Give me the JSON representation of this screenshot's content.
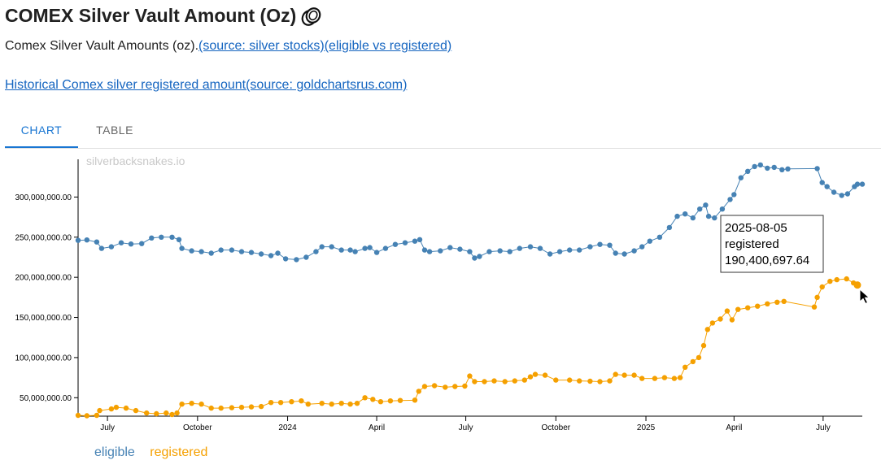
{
  "header": {
    "title": "COMEX Silver Vault Amount (Oz)",
    "description_prefix": "Comex Silver Vault Amounts (oz).",
    "link_source": "(source: silver stocks)",
    "link_eligible": "(eligible vs registered)",
    "historical_link": "Historical Comex silver registered amount(source: goldchartsrus.com)"
  },
  "tabs": [
    {
      "label": "CHART",
      "active": true
    },
    {
      "label": "TABLE",
      "active": false
    }
  ],
  "chart_data": {
    "type": "line",
    "watermark": "silverbacksnakes.io",
    "x_tick_labels": [
      "July",
      "October",
      "2024",
      "April",
      "July",
      "October",
      "2025",
      "April",
      "July"
    ],
    "x_tick_dates": [
      "2023-07-01",
      "2023-10-01",
      "2024-01-01",
      "2024-04-01",
      "2024-07-01",
      "2024-10-01",
      "2025-01-01",
      "2025-04-01",
      "2025-07-01"
    ],
    "y_ticks": [
      50000000,
      100000000,
      150000000,
      200000000,
      250000000,
      300000000
    ],
    "y_tick_labels": [
      "50,000,000.00",
      "100,000,000.00",
      "150,000,000.00",
      "200,000,000.00",
      "250,000,000.00",
      "300,000,000.00"
    ],
    "xlim": [
      "2023-06-01",
      "2025-08-10"
    ],
    "ylim": [
      27000000,
      347000000
    ],
    "legend_position": "bottom-left",
    "series": [
      {
        "name": "eligible",
        "color": "#4682b4",
        "points": [
          [
            "2023-06-01",
            246000000
          ],
          [
            "2023-06-10",
            246500000
          ],
          [
            "2023-06-20",
            244000000
          ],
          [
            "2023-06-25",
            236000000
          ],
          [
            "2023-07-05",
            238000000
          ],
          [
            "2023-07-15",
            243000000
          ],
          [
            "2023-07-25",
            241500000
          ],
          [
            "2023-08-05",
            242000000
          ],
          [
            "2023-08-15",
            249000000
          ],
          [
            "2023-08-25",
            250000000
          ],
          [
            "2023-09-05",
            250000000
          ],
          [
            "2023-09-12",
            247000000
          ],
          [
            "2023-09-15",
            236000000
          ],
          [
            "2023-09-25",
            233000000
          ],
          [
            "2023-10-05",
            232000000
          ],
          [
            "2023-10-15",
            230000000
          ],
          [
            "2023-10-25",
            234000000
          ],
          [
            "2023-11-05",
            234000000
          ],
          [
            "2023-11-15",
            232000000
          ],
          [
            "2023-11-25",
            231000000
          ],
          [
            "2023-12-05",
            229000000
          ],
          [
            "2023-12-15",
            227000000
          ],
          [
            "2023-12-22",
            230000000
          ],
          [
            "2023-12-30",
            223000000
          ],
          [
            "2024-01-10",
            222000000
          ],
          [
            "2024-01-20",
            225000000
          ],
          [
            "2024-01-30",
            232000000
          ],
          [
            "2024-02-05",
            238000000
          ],
          [
            "2024-02-15",
            238000000
          ],
          [
            "2024-02-25",
            234000000
          ],
          [
            "2024-03-05",
            234000000
          ],
          [
            "2024-03-10",
            232000000
          ],
          [
            "2024-03-20",
            236000000
          ],
          [
            "2024-03-25",
            237000000
          ],
          [
            "2024-04-01",
            231000000
          ],
          [
            "2024-04-10",
            236000000
          ],
          [
            "2024-04-20",
            241000000
          ],
          [
            "2024-04-30",
            243000000
          ],
          [
            "2024-05-10",
            245000000
          ],
          [
            "2024-05-15",
            247000000
          ],
          [
            "2024-05-20",
            234000000
          ],
          [
            "2024-05-25",
            232000000
          ],
          [
            "2024-06-05",
            233000000
          ],
          [
            "2024-06-15",
            237000000
          ],
          [
            "2024-06-25",
            235000000
          ],
          [
            "2024-07-05",
            232000000
          ],
          [
            "2024-07-10",
            224000000
          ],
          [
            "2024-07-15",
            226000000
          ],
          [
            "2024-07-25",
            232000000
          ],
          [
            "2024-08-05",
            233000000
          ],
          [
            "2024-08-15",
            232000000
          ],
          [
            "2024-08-25",
            236000000
          ],
          [
            "2024-09-05",
            238000000
          ],
          [
            "2024-09-15",
            236000000
          ],
          [
            "2024-09-25",
            229000000
          ],
          [
            "2024-10-05",
            232000000
          ],
          [
            "2024-10-15",
            234000000
          ],
          [
            "2024-10-25",
            234000000
          ],
          [
            "2024-11-05",
            238000000
          ],
          [
            "2024-11-15",
            241000000
          ],
          [
            "2024-11-25",
            240000000
          ],
          [
            "2024-12-01",
            230000000
          ],
          [
            "2024-12-10",
            229000000
          ],
          [
            "2024-12-20",
            233000000
          ],
          [
            "2024-12-28",
            238000000
          ],
          [
            "2025-01-05",
            245000000
          ],
          [
            "2025-01-15",
            250000000
          ],
          [
            "2025-01-25",
            262000000
          ],
          [
            "2025-02-02",
            276000000
          ],
          [
            "2025-02-10",
            279000000
          ],
          [
            "2025-02-18",
            274000000
          ],
          [
            "2025-02-25",
            285000000
          ],
          [
            "2025-03-03",
            290000000
          ],
          [
            "2025-03-06",
            276000000
          ],
          [
            "2025-03-12",
            274000000
          ],
          [
            "2025-03-20",
            285000000
          ],
          [
            "2025-03-28",
            297000000
          ],
          [
            "2025-04-01",
            303000000
          ],
          [
            "2025-04-08",
            324000000
          ],
          [
            "2025-04-15",
            332000000
          ],
          [
            "2025-04-22",
            338000000
          ],
          [
            "2025-04-28",
            340000000
          ],
          [
            "2025-05-05",
            336000000
          ],
          [
            "2025-05-12",
            337000000
          ],
          [
            "2025-05-20",
            334000000
          ],
          [
            "2025-05-26",
            335000000
          ],
          [
            "2025-06-25",
            335500000
          ],
          [
            "2025-06-30",
            318000000
          ],
          [
            "2025-07-05",
            313000000
          ],
          [
            "2025-07-12",
            306000000
          ],
          [
            "2025-07-20",
            302000000
          ],
          [
            "2025-07-26",
            304000000
          ],
          [
            "2025-08-02",
            313000000
          ],
          [
            "2025-08-05",
            316000000
          ],
          [
            "2025-08-10",
            316000000
          ]
        ]
      },
      {
        "name": "registered",
        "color": "#f5a000",
        "points": [
          [
            "2023-06-01",
            28000000
          ],
          [
            "2023-06-10",
            27500000
          ],
          [
            "2023-06-20",
            28000000
          ],
          [
            "2023-06-23",
            34000000
          ],
          [
            "2023-07-05",
            36000000
          ],
          [
            "2023-07-10",
            38000000
          ],
          [
            "2023-07-20",
            37000000
          ],
          [
            "2023-07-30",
            34000000
          ],
          [
            "2023-08-10",
            31000000
          ],
          [
            "2023-08-20",
            30000000
          ],
          [
            "2023-08-30",
            31000000
          ],
          [
            "2023-09-05",
            29000000
          ],
          [
            "2023-09-10",
            31000000
          ],
          [
            "2023-09-15",
            42000000
          ],
          [
            "2023-09-25",
            43000000
          ],
          [
            "2023-10-05",
            42000000
          ],
          [
            "2023-10-15",
            37000000
          ],
          [
            "2023-10-25",
            37000000
          ],
          [
            "2023-11-05",
            37500000
          ],
          [
            "2023-11-15",
            38000000
          ],
          [
            "2023-11-25",
            38500000
          ],
          [
            "2023-12-05",
            39000000
          ],
          [
            "2023-12-15",
            44000000
          ],
          [
            "2023-12-25",
            44000000
          ],
          [
            "2024-01-05",
            45000000
          ],
          [
            "2024-01-15",
            46000000
          ],
          [
            "2024-01-22",
            42000000
          ],
          [
            "2024-02-05",
            43000000
          ],
          [
            "2024-02-15",
            42000000
          ],
          [
            "2024-02-25",
            43000000
          ],
          [
            "2024-03-05",
            42000000
          ],
          [
            "2024-03-12",
            43000000
          ],
          [
            "2024-03-20",
            50000000
          ],
          [
            "2024-03-28",
            48000000
          ],
          [
            "2024-04-05",
            45000000
          ],
          [
            "2024-04-15",
            46000000
          ],
          [
            "2024-04-25",
            46500000
          ],
          [
            "2024-05-10",
            47000000
          ],
          [
            "2024-05-14",
            58000000
          ],
          [
            "2024-05-20",
            64000000
          ],
          [
            "2024-05-30",
            65000000
          ],
          [
            "2024-06-10",
            63000000
          ],
          [
            "2024-06-20",
            64000000
          ],
          [
            "2024-06-30",
            64500000
          ],
          [
            "2024-07-05",
            77000000
          ],
          [
            "2024-07-10",
            70000000
          ],
          [
            "2024-07-20",
            70000000
          ],
          [
            "2024-07-30",
            71000000
          ],
          [
            "2024-08-10",
            70000000
          ],
          [
            "2024-08-20",
            71000000
          ],
          [
            "2024-08-30",
            72000000
          ],
          [
            "2024-09-05",
            76000000
          ],
          [
            "2024-09-10",
            79000000
          ],
          [
            "2024-09-20",
            78000000
          ],
          [
            "2024-10-01",
            72000000
          ],
          [
            "2024-10-15",
            72000000
          ],
          [
            "2024-10-25",
            71000000
          ],
          [
            "2024-11-05",
            70500000
          ],
          [
            "2024-11-15",
            70000000
          ],
          [
            "2024-11-25",
            71000000
          ],
          [
            "2024-12-01",
            79000000
          ],
          [
            "2024-12-10",
            78000000
          ],
          [
            "2024-12-20",
            78000000
          ],
          [
            "2024-12-28",
            74000000
          ],
          [
            "2025-01-10",
            74000000
          ],
          [
            "2025-01-20",
            75000000
          ],
          [
            "2025-01-30",
            74000000
          ],
          [
            "2025-02-05",
            75000000
          ],
          [
            "2025-02-10",
            88000000
          ],
          [
            "2025-02-18",
            95000000
          ],
          [
            "2025-02-24",
            100000000
          ],
          [
            "2025-03-01",
            115000000
          ],
          [
            "2025-03-05",
            135000000
          ],
          [
            "2025-03-10",
            143000000
          ],
          [
            "2025-03-18",
            148000000
          ],
          [
            "2025-03-25",
            158000000
          ],
          [
            "2025-03-30",
            147000000
          ],
          [
            "2025-04-05",
            160000000
          ],
          [
            "2025-04-15",
            162000000
          ],
          [
            "2025-04-25",
            164000000
          ],
          [
            "2025-05-05",
            167000000
          ],
          [
            "2025-05-15",
            169000000
          ],
          [
            "2025-05-22",
            170000000
          ],
          [
            "2025-06-22",
            163000000
          ],
          [
            "2025-06-25",
            175000000
          ],
          [
            "2025-06-30",
            188000000
          ],
          [
            "2025-07-08",
            195000000
          ],
          [
            "2025-07-15",
            197000000
          ],
          [
            "2025-07-25",
            198000000
          ],
          [
            "2025-08-01",
            193000000
          ],
          [
            "2025-08-05",
            190400697.64
          ]
        ]
      }
    ],
    "tooltip": {
      "date": "2025-08-05",
      "series": "registered",
      "value_label": "190,400,697.64",
      "value": 190400697.64
    }
  }
}
